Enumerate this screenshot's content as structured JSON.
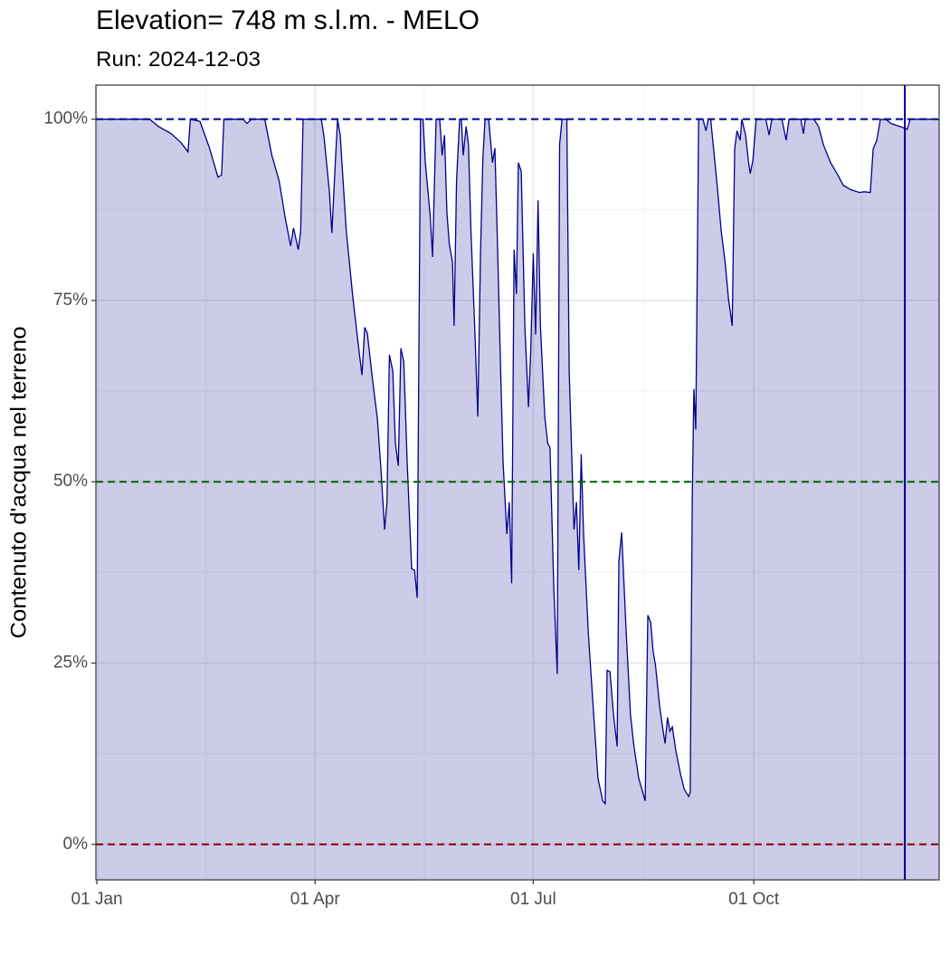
{
  "chart_data": {
    "type": "area",
    "title": "Elevation= 748 m s.l.m. - MELO",
    "subtitle": "Run: 2024-12-03",
    "y_label": "Contenuto d'acqua nel terreno",
    "xlim": [
      -0.4,
      351.3
    ],
    "ylim": [
      -4.9,
      104.7
    ],
    "xticks": [
      {
        "value": 0,
        "label": "01 Jan"
      },
      {
        "value": 91,
        "label": "01 Apr"
      },
      {
        "value": 182,
        "label": "01 Jul"
      },
      {
        "value": 274,
        "label": "01 Oct"
      }
    ],
    "x_minor_ticks": [
      45.5,
      136.5,
      228,
      319
    ],
    "yticks": [
      {
        "value": 0,
        "label": "0%"
      },
      {
        "value": 25,
        "label": "25%"
      },
      {
        "value": 50,
        "label": "50%"
      },
      {
        "value": 75,
        "label": "75%"
      },
      {
        "value": 100,
        "label": "100%"
      }
    ],
    "y_minor_ticks": [
      12.5,
      37.5,
      62.5,
      87.5
    ],
    "grid": true,
    "hlines": [
      {
        "value": 100,
        "color": "#00008b"
      },
      {
        "value": 50,
        "color": "#006400"
      },
      {
        "value": 0,
        "color": "#8b0000"
      }
    ],
    "vline": {
      "value": 337,
      "color": "#00008b"
    },
    "x": [
      0,
      22,
      25.7,
      31,
      35,
      38,
      39,
      43,
      47,
      50.5,
      52,
      53,
      61,
      62.6,
      64.5,
      70,
      73,
      76,
      78.5,
      80.8,
      82,
      84,
      85,
      86,
      93.6,
      94.7,
      97,
      98,
      99.6,
      100.4,
      101.5,
      104,
      106.8,
      109,
      110.6,
      111.7,
      112.8,
      115,
      117,
      118.5,
      120,
      121,
      122,
      123.4,
      124.5,
      125.7,
      126.8,
      128,
      129.4,
      131.3,
      132.5,
      133.6,
      135,
      136,
      137,
      139,
      140,
      141.5,
      143,
      144,
      145,
      146,
      147,
      148.3,
      149,
      150,
      151.3,
      152,
      152.8,
      154,
      155,
      156,
      157.7,
      158.9,
      160,
      161,
      161.9,
      163.4,
      165,
      166,
      167,
      168.3,
      169.4,
      171,
      172,
      173,
      174,
      175,
      175.8,
      177,
      178.5,
      180,
      181,
      182,
      183,
      184,
      185,
      186.8,
      188,
      189,
      190.6,
      192,
      193,
      194,
      196,
      197,
      199,
      200,
      201,
      202,
      203,
      205,
      207,
      209,
      211,
      212,
      212.8,
      214,
      215.5,
      217,
      217.7,
      218.9,
      220.8,
      222.6,
      224,
      226,
      228.7,
      229.8,
      231,
      232,
      233,
      234.7,
      236,
      237,
      238,
      239,
      240,
      241.5,
      243.4,
      245,
      246.8,
      247.5,
      248.3,
      249,
      249.8,
      251,
      252.8,
      254,
      255,
      256,
      257.4,
      258.9,
      260.4,
      262,
      263.4,
      265,
      266,
      267,
      268.3,
      269,
      270.6,
      271.7,
      272.5,
      273.6,
      275,
      279,
      280.4,
      281.5,
      285.7,
      287.5,
      288.7,
      293.6,
      294.7,
      295.5,
      299,
      301,
      303,
      306,
      308.7,
      311.3,
      314.3,
      318,
      320,
      322.6,
      323.8,
      325.3,
      326.8,
      329.4,
      331.3,
      335,
      338,
      339.2,
      351.3
    ],
    "series": [
      {
        "color": "#00008b",
        "fill": "rgba(0,0,139,0.2)",
        "values": [
          100,
          100,
          99,
          98,
          96.8,
          95.5,
          100,
          99.7,
          96,
          92,
          92.3,
          100,
          100,
          99.4,
          100,
          100,
          95,
          91.5,
          86.5,
          82.5,
          85,
          82,
          84.5,
          100,
          100,
          97.7,
          90,
          84.3,
          95,
          100,
          97.8,
          84.6,
          75.3,
          69,
          64.7,
          71.3,
          70.5,
          64,
          58.7,
          51.6,
          43.4,
          47.2,
          67.5,
          65.3,
          55.3,
          52.2,
          68.4,
          66.5,
          52.8,
          38,
          37.8,
          34,
          100,
          100,
          94,
          86.8,
          81,
          100,
          100,
          95,
          97.8,
          87,
          82.8,
          80.3,
          71.5,
          91.5,
          100,
          100,
          95,
          99,
          96.5,
          84.6,
          70.3,
          59,
          81.5,
          94.6,
          100,
          100,
          94,
          96,
          84,
          66.5,
          52.8,
          42.8,
          47.2,
          36,
          82,
          75.9,
          94,
          92.8,
          71.5,
          60.3,
          68.4,
          81.5,
          70.3,
          88.8,
          71.5,
          59,
          55.3,
          54.7,
          35.3,
          23.5,
          96.5,
          100,
          100,
          65.3,
          43.4,
          47.2,
          37.8,
          53.8,
          42.8,
          29,
          19,
          9.1,
          6,
          5.6,
          24,
          23.8,
          17.9,
          13.5,
          39,
          43,
          29,
          17.8,
          13.5,
          9.1,
          6,
          31.6,
          30.6,
          26.6,
          24.7,
          19.1,
          16,
          13.9,
          17.5,
          15.6,
          16.2,
          12.9,
          9.7,
          7.6,
          6.6,
          7.2,
          47.2,
          62.8,
          57.2,
          100,
          100,
          98.4,
          100,
          100,
          95.3,
          90.3,
          84.6,
          80.3,
          75.3,
          71.5,
          95.9,
          98.4,
          97.1,
          100,
          97.8,
          94.3,
          92.5,
          94.3,
          100,
          100,
          97.8,
          100,
          100,
          97.1,
          100,
          100,
          98,
          100,
          100,
          99,
          96.5,
          94,
          92.5,
          90.9,
          90.3,
          89.9,
          90,
          89.9,
          95.9,
          97.1,
          100,
          99.9,
          99.4,
          99,
          98.6,
          100,
          100
        ]
      }
    ]
  }
}
